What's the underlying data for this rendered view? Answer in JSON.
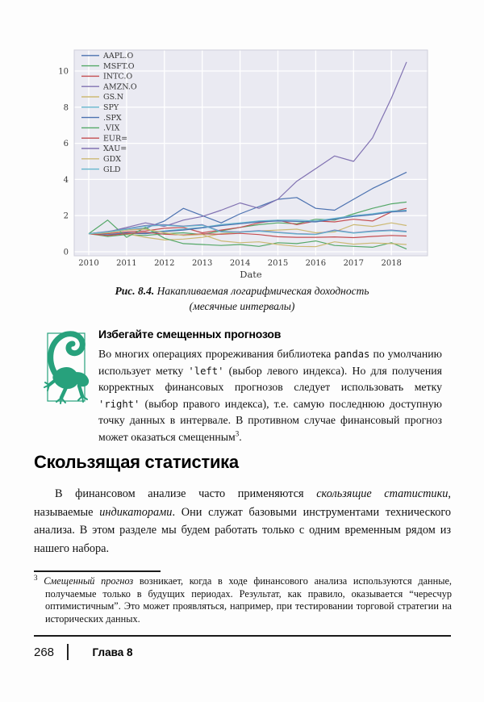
{
  "figure": {
    "caption_label": "Рис. 8.4.",
    "caption_text": " Накапливаемая логарифмическая доходность",
    "caption_sub": "(месячные интервалы)"
  },
  "tip": {
    "icon": "lizard-icon",
    "icon_color": "#27a17c",
    "title": "Избегайте смещенных прогнозов",
    "body": [
      {
        "t": "Во многих операциях прореживания библиотека "
      },
      {
        "t": "pandas",
        "style": "code"
      },
      {
        "t": " по умолчанию использует метку "
      },
      {
        "t": "'left'",
        "style": "code"
      },
      {
        "t": " (выбор левого индекса). Но для получения корректных финансовых прогнозов следует использовать метку "
      },
      {
        "t": "'right'",
        "style": "code"
      },
      {
        "t": " (выбор правого индекса), т.е. самую последнюю доступную точку данных в интервале. В противном случае финансовый прогноз может оказаться смещенным"
      },
      {
        "t": "3",
        "style": "sup"
      },
      {
        "t": "."
      }
    ]
  },
  "section": {
    "heading": "Скользящая статистика",
    "paragraph": [
      {
        "t": "В финансовом анализе часто применяются "
      },
      {
        "t": "скользящие статистики",
        "style": "italic"
      },
      {
        "t": ", называемые "
      },
      {
        "t": "индикаторами",
        "style": "italic"
      },
      {
        "t": ". Они служат базовыми инструментами технического анализа. В этом разделе мы будем работать только с одним временным рядом из нашего набора."
      }
    ]
  },
  "footnote": {
    "segments": [
      {
        "t": "3",
        "style": "sup"
      },
      {
        "t": " "
      },
      {
        "t": "Смещенный прогноз",
        "style": "italic"
      },
      {
        "t": " возникает, когда в ходе финансового анализа используются данные, получаемые только в будущих периодах. Результат, как правило, оказывается “чересчур оптимистичным”. Это может проявляться, например, при тестировании торговой стратегии на исторических данных."
      }
    ]
  },
  "footer": {
    "page_number": "268",
    "chapter": "Глава 8"
  },
  "chart_data": {
    "type": "line",
    "title": "",
    "xlabel": "Date",
    "ylabel": "",
    "grid": true,
    "legend_position": "upper left",
    "plot_bg": "#eaeaf2",
    "grid_color": "#ffffff",
    "frame_color": "#cfcfda",
    "tick_color": "#3a3a3a",
    "xticks": [
      2010,
      2011,
      2012,
      2013,
      2014,
      2015,
      2016,
      2017,
      2018
    ],
    "yticks": [
      0,
      2,
      4,
      6,
      8,
      10
    ],
    "ylim": [
      -0.25,
      11.2
    ],
    "x": [
      2010,
      2010.5,
      2011,
      2011.5,
      2012,
      2012.5,
      2013,
      2013.5,
      2014,
      2014.5,
      2015,
      2015.5,
      2016,
      2016.5,
      2017,
      2017.5,
      2018,
      2018.4
    ],
    "series": [
      {
        "name": "AAPL.O",
        "color": "#4C72B0",
        "values": [
          1.0,
          1.1,
          1.2,
          1.3,
          1.7,
          2.4,
          2.0,
          1.6,
          2.1,
          2.5,
          2.9,
          3.0,
          2.4,
          2.3,
          2.9,
          3.5,
          4.0,
          4.4
        ]
      },
      {
        "name": "MSFT.O",
        "color": "#55A868",
        "values": [
          1.0,
          0.85,
          0.95,
          0.9,
          1.0,
          1.05,
          0.95,
          1.15,
          1.35,
          1.5,
          1.6,
          1.55,
          1.8,
          1.75,
          2.1,
          2.4,
          2.65,
          2.75
        ]
      },
      {
        "name": "INTC.O",
        "color": "#C44E52",
        "values": [
          1.0,
          1.0,
          1.1,
          1.15,
          1.3,
          1.35,
          1.05,
          1.2,
          1.35,
          1.6,
          1.75,
          1.5,
          1.7,
          1.65,
          1.8,
          1.7,
          2.2,
          2.4
        ]
      },
      {
        "name": "AMZN.O",
        "color": "#8172B2",
        "values": [
          1.0,
          1.1,
          1.35,
          1.6,
          1.4,
          1.75,
          1.95,
          2.3,
          2.7,
          2.4,
          2.9,
          3.9,
          4.6,
          5.3,
          5.0,
          6.3,
          8.5,
          10.5
        ]
      },
      {
        "name": "GS.N",
        "color": "#CCB974",
        "values": [
          1.0,
          0.9,
          1.0,
          0.8,
          0.65,
          0.7,
          0.8,
          1.0,
          1.1,
          1.15,
          1.2,
          1.25,
          1.05,
          1.1,
          1.5,
          1.4,
          1.6,
          1.45
        ]
      },
      {
        "name": "SPY",
        "color": "#64B5CD",
        "values": [
          1.0,
          0.95,
          1.05,
          1.05,
          1.15,
          1.25,
          1.35,
          1.5,
          1.6,
          1.7,
          1.75,
          1.75,
          1.7,
          1.85,
          2.0,
          2.1,
          2.25,
          2.3
        ]
      },
      {
        "name": ".SPX",
        "color": "#4C72B0",
        "values": [
          1.0,
          0.93,
          1.03,
          1.0,
          1.12,
          1.2,
          1.32,
          1.45,
          1.55,
          1.65,
          1.7,
          1.68,
          1.65,
          1.8,
          1.95,
          2.05,
          2.2,
          2.25
        ]
      },
      {
        "name": ".VIX",
        "color": "#55A868",
        "values": [
          1.0,
          1.75,
          0.8,
          1.35,
          0.75,
          0.45,
          0.4,
          0.35,
          0.4,
          0.3,
          0.5,
          0.45,
          0.6,
          0.35,
          0.3,
          0.25,
          0.5,
          0.15
        ]
      },
      {
        "name": "EUR=",
        "color": "#C44E52",
        "values": [
          1.0,
          0.9,
          1.0,
          1.08,
          0.97,
          0.93,
          0.99,
          0.97,
          1.02,
          0.95,
          0.83,
          0.8,
          0.8,
          0.82,
          0.78,
          0.85,
          0.9,
          0.87
        ]
      },
      {
        "name": "XAU=",
        "color": "#8172B2",
        "values": [
          1.0,
          1.12,
          1.28,
          1.45,
          1.5,
          1.42,
          1.5,
          1.12,
          1.1,
          1.17,
          1.08,
          1.0,
          0.97,
          1.2,
          1.05,
          1.15,
          1.2,
          1.13
        ]
      },
      {
        "name": "GDX",
        "color": "#CCB974",
        "values": [
          1.0,
          1.05,
          1.2,
          1.25,
          1.05,
          0.9,
          0.95,
          0.6,
          0.5,
          0.55,
          0.4,
          0.3,
          0.28,
          0.55,
          0.42,
          0.48,
          0.45,
          0.4
        ]
      },
      {
        "name": "GLD",
        "color": "#64B5CD",
        "values": [
          1.0,
          1.1,
          1.25,
          1.42,
          1.47,
          1.4,
          1.47,
          1.1,
          1.08,
          1.14,
          1.06,
          0.98,
          0.95,
          1.17,
          1.03,
          1.12,
          1.17,
          1.1
        ]
      }
    ]
  }
}
